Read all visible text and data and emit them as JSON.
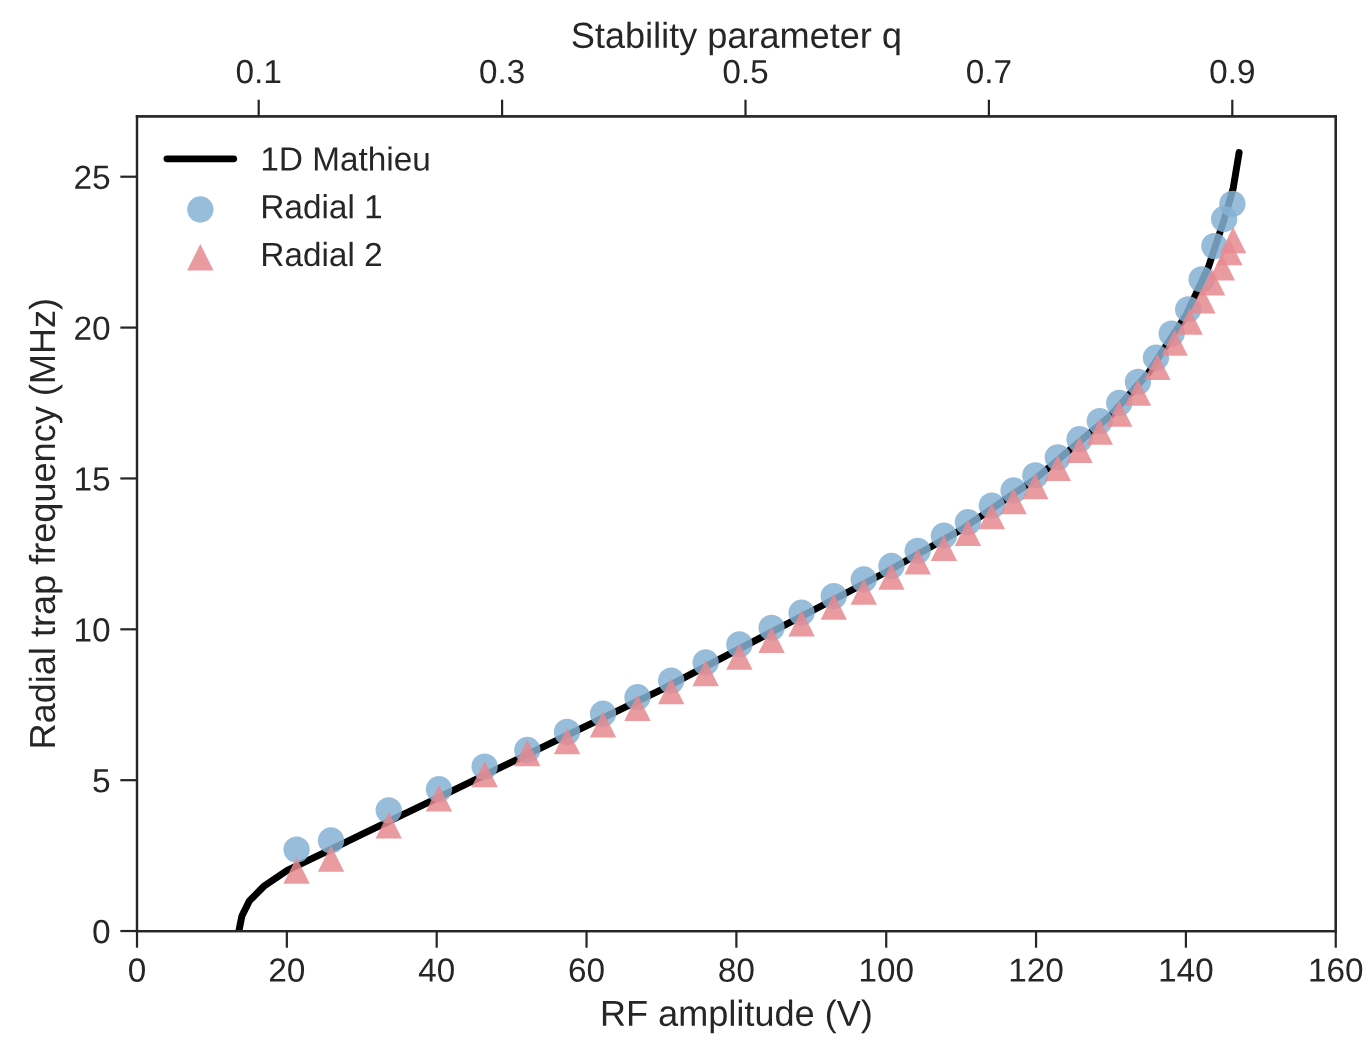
{
  "chart_data": {
    "type": "scatter",
    "xlabel": "RF amplitude (V)",
    "ylabel": "Radial trap frequency (MHz)",
    "x2label": "Stability parameter q",
    "xlim": [
      0,
      160
    ],
    "xticks": [
      0,
      20,
      40,
      60,
      80,
      100,
      120,
      140,
      160
    ],
    "ylim": [
      0,
      27
    ],
    "yticks": [
      0,
      5,
      10,
      15,
      20,
      25
    ],
    "x2lim": [
      0,
      0.985
    ],
    "x2ticks": [
      0.1,
      0.3,
      0.5,
      0.7,
      0.9
    ],
    "legend": "top left",
    "grid": false,
    "series": [
      {
        "name": "1D Mathieu",
        "type": "line",
        "color": "#000000",
        "marker": "none",
        "line_style": "solid",
        "x": [
          13.6,
          14,
          15,
          17,
          20,
          25,
          30,
          40,
          50,
          60,
          70,
          80,
          90,
          100,
          110,
          120,
          130,
          135,
          140,
          143,
          145,
          146.3,
          147.1
        ],
        "values": [
          0,
          0.5,
          1.0,
          1.5,
          2.0,
          2.6,
          3.2,
          4.4,
          5.6,
          6.8,
          8.0,
          9.3,
          10.6,
          11.9,
          13.3,
          15.0,
          17.1,
          18.5,
          20.4,
          22.0,
          23.5,
          24.6,
          25.8
        ]
      },
      {
        "name": "Radial 1",
        "color": "#86b1d4",
        "marker": "circle",
        "x": [
          21.3,
          25.9,
          33.6,
          40.3,
          46.4,
          52.1,
          57.4,
          62.2,
          66.8,
          71.3,
          75.9,
          80.4,
          84.7,
          88.7,
          93.0,
          97.0,
          100.7,
          104.2,
          107.7,
          110.9,
          114.1,
          117.0,
          119.9,
          122.9,
          125.8,
          128.5,
          131.1,
          133.6,
          136.0,
          138.1,
          140.3,
          142.1,
          143.8,
          145.1,
          146.2
        ],
        "values": [
          2.7,
          3.0,
          4.0,
          4.7,
          5.45,
          6.0,
          6.6,
          7.2,
          7.75,
          8.3,
          8.9,
          9.5,
          10.05,
          10.55,
          11.1,
          11.65,
          12.1,
          12.6,
          13.1,
          13.55,
          14.1,
          14.6,
          15.1,
          15.7,
          16.3,
          16.9,
          17.5,
          18.2,
          19.0,
          19.8,
          20.6,
          21.6,
          22.7,
          23.6,
          24.1
        ]
      },
      {
        "name": "Radial 2",
        "color": "#e6898f",
        "marker": "triangle",
        "x": [
          21.3,
          25.9,
          33.6,
          40.3,
          46.4,
          52.1,
          57.4,
          62.2,
          66.8,
          71.3,
          75.9,
          80.4,
          84.7,
          88.7,
          93.0,
          97.0,
          100.7,
          104.2,
          107.7,
          110.9,
          114.1,
          117.0,
          119.9,
          122.9,
          125.8,
          128.5,
          131.1,
          133.6,
          136.2,
          138.5,
          140.5,
          142.2,
          143.5,
          144.8,
          145.8,
          146.3
        ],
        "values": [
          2.0,
          2.4,
          3.5,
          4.4,
          5.2,
          5.9,
          6.3,
          6.85,
          7.4,
          7.95,
          8.55,
          9.1,
          9.65,
          10.2,
          10.75,
          11.25,
          11.75,
          12.25,
          12.7,
          13.2,
          13.75,
          14.25,
          14.75,
          15.35,
          15.95,
          16.55,
          17.15,
          17.85,
          18.7,
          19.5,
          20.2,
          20.9,
          21.5,
          22.0,
          22.5,
          22.9
        ]
      }
    ]
  }
}
